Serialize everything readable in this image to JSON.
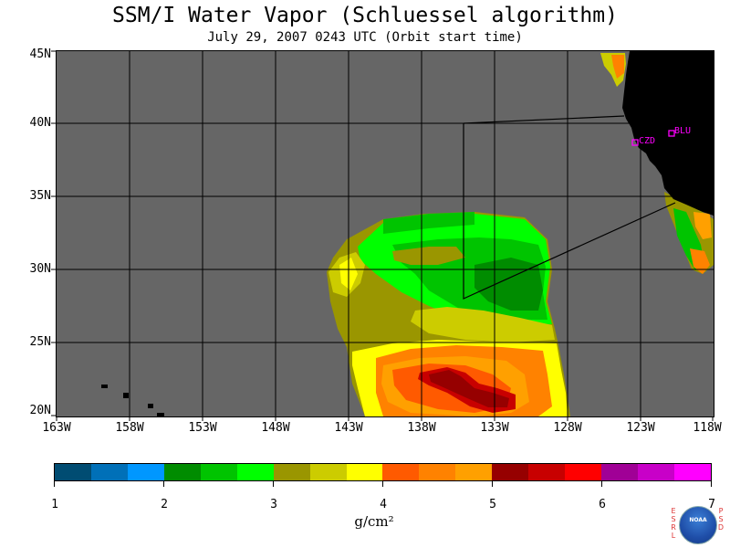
{
  "title": "SSM/I Water Vapor (Schluessel algorithm)",
  "subtitle": "July 29, 2007  0243 UTC  (Orbit start time)",
  "map": {
    "lon_range": [
      -163,
      -118
    ],
    "lat_range": [
      20,
      45
    ],
    "y_ticks": [
      "45N",
      "40N",
      "35N",
      "30N",
      "25N",
      "20N"
    ],
    "x_ticks": [
      "163W",
      "158W",
      "153W",
      "148W",
      "143W",
      "138W",
      "133W",
      "128W",
      "123W",
      "118W"
    ],
    "ocean_color": "#666666",
    "land_color": "#000000",
    "stations": [
      {
        "label": "CZD",
        "lon": -123.2,
        "lat": 38.6
      },
      {
        "label": "BLU",
        "lon": -120.8,
        "lat": 39.3
      }
    ]
  },
  "colorbar": {
    "colors": [
      "#004c72",
      "#0070b8",
      "#0097ff",
      "#008c00",
      "#00c400",
      "#00ff00",
      "#9a9600",
      "#cccc00",
      "#ffff00",
      "#ff5a00",
      "#ff8200",
      "#ffa000",
      "#960000",
      "#c80000",
      "#ff0000",
      "#a00096",
      "#c800c8",
      "#ff00ff"
    ],
    "tick_labels": [
      "1",
      "2",
      "3",
      "4",
      "5",
      "6",
      "7"
    ],
    "range": [
      1,
      7
    ],
    "units": "g/cm²"
  },
  "logo": {
    "left_letters": [
      "E",
      "S",
      "R",
      "L"
    ],
    "right_letters": [
      "P",
      "S",
      "D"
    ],
    "name": "NOAA"
  }
}
